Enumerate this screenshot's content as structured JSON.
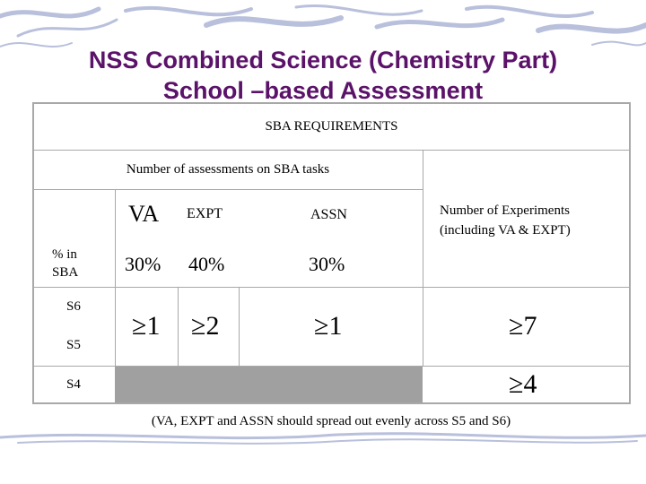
{
  "title": {
    "line1": "NSS Combined Science (Chemistry Part)",
    "line2": "School –based Assessment"
  },
  "table": {
    "header": "SBA REQUIREMENTS",
    "subheader": "Number of assessments on SBA tasks",
    "experiments_header": "Number of Experiments (including VA & EXPT)",
    "columns": [
      "VA",
      "EXPT",
      "ASSN"
    ],
    "percent_label": "% in SBA",
    "percentages": [
      "30%",
      "40%",
      "30%"
    ],
    "rows": {
      "s6": "S6",
      "s5": "S5",
      "s4": "S4"
    },
    "s5_s6_values": {
      "va": "≥1",
      "expt": "≥2",
      "assn": "≥1",
      "experiments": "≥7"
    },
    "s4_values": {
      "experiments": "≥4"
    }
  },
  "footnote": "(VA, EXPT and ASSN should spread out evenly across S5 and S6)",
  "colors": {
    "title": "#5b1269",
    "grid": "#a8a8a8",
    "shaded": "#a0a0a0",
    "decoration": "#9aa3c7"
  }
}
